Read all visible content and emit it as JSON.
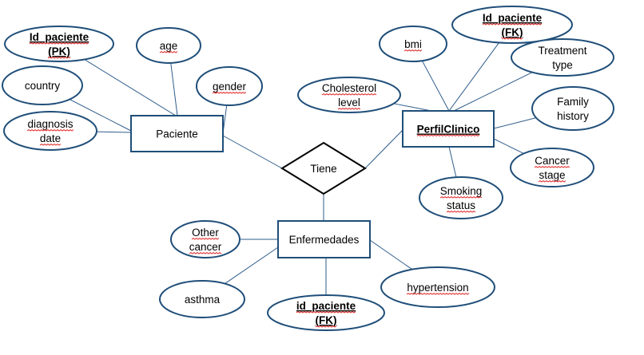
{
  "colors": {
    "stroke": "#1f4e79",
    "line": "#2e5c8a",
    "spellcheck": "#e02020"
  },
  "entities": {
    "paciente": "Paciente",
    "perfil": "PerfilClinico",
    "enfermedades": "Enfermedades"
  },
  "relationship": {
    "label": "Tiene"
  },
  "attributes": {
    "p_id": [
      "Id_paciente",
      "(PK)"
    ],
    "p_age": [
      "age"
    ],
    "p_gender": [
      "gender"
    ],
    "p_country": [
      "country"
    ],
    "p_diag": [
      "diagnosis",
      "date"
    ],
    "pc_bmi": [
      "bmi"
    ],
    "pc_id": [
      "Id_paciente",
      "(FK)"
    ],
    "pc_treat": [
      "Treatment",
      "type"
    ],
    "pc_chol": [
      "Cholesterol",
      "level"
    ],
    "pc_family": [
      "Family",
      "history"
    ],
    "pc_cancer": [
      "Cancer",
      "stage"
    ],
    "pc_smoke": [
      "Smoking",
      "status"
    ],
    "e_other": [
      "Other",
      "cancer"
    ],
    "e_asthma": [
      "asthma"
    ],
    "e_id": [
      "id_paciente",
      "(FK)"
    ],
    "e_hyper": [
      "hypertension"
    ]
  }
}
